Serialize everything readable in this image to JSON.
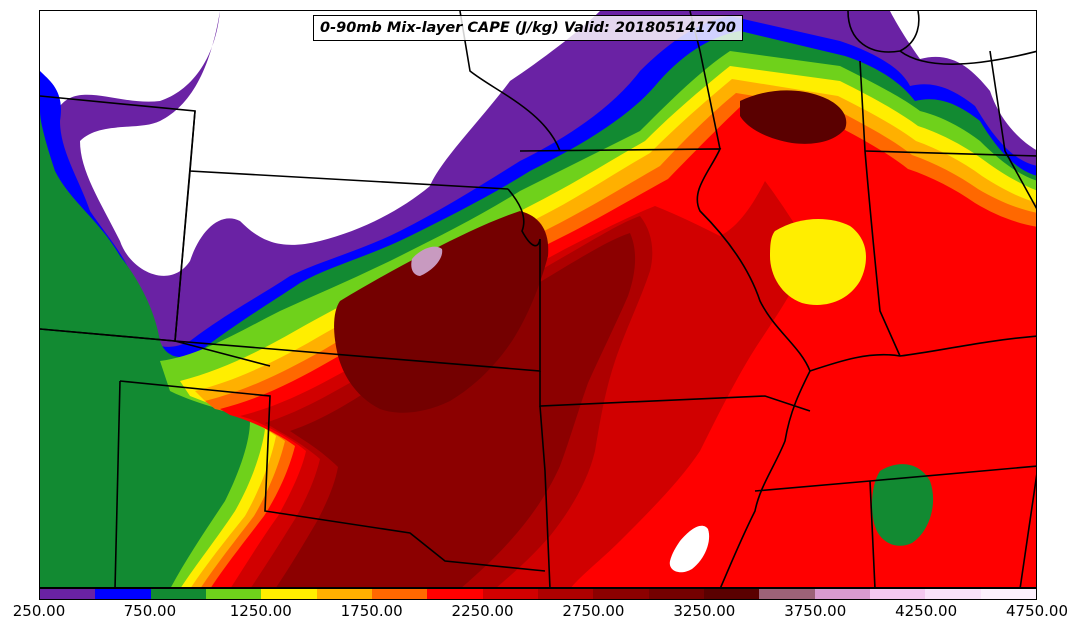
{
  "title": "0-90mb Mix-layer CAPE (J/kg) Valid: 201805141700",
  "colorbar": {
    "levels": [
      250,
      500,
      750,
      1000,
      1250,
      1500,
      1750,
      2000,
      2250,
      2500,
      2750,
      3000,
      3250,
      3500,
      3750,
      4000,
      4250,
      4500,
      4750
    ],
    "colors": [
      "#6a22a4",
      "#0000ff",
      "#128a32",
      "#6fd11b",
      "#ffee00",
      "#ffb000",
      "#ff6800",
      "#ff0000",
      "#d10000",
      "#ae0000",
      "#8c0000",
      "#740000",
      "#5a0000",
      "#9c6278",
      "#d99ad0",
      "#f4c8f0",
      "#fae2fa",
      "#fdf0fd"
    ],
    "tick_labels": [
      "250.00",
      "750.00",
      "1250.00",
      "1750.00",
      "2250.00",
      "2750.00",
      "3250.00",
      "3750.00",
      "4250.00",
      "4750.00"
    ]
  }
}
